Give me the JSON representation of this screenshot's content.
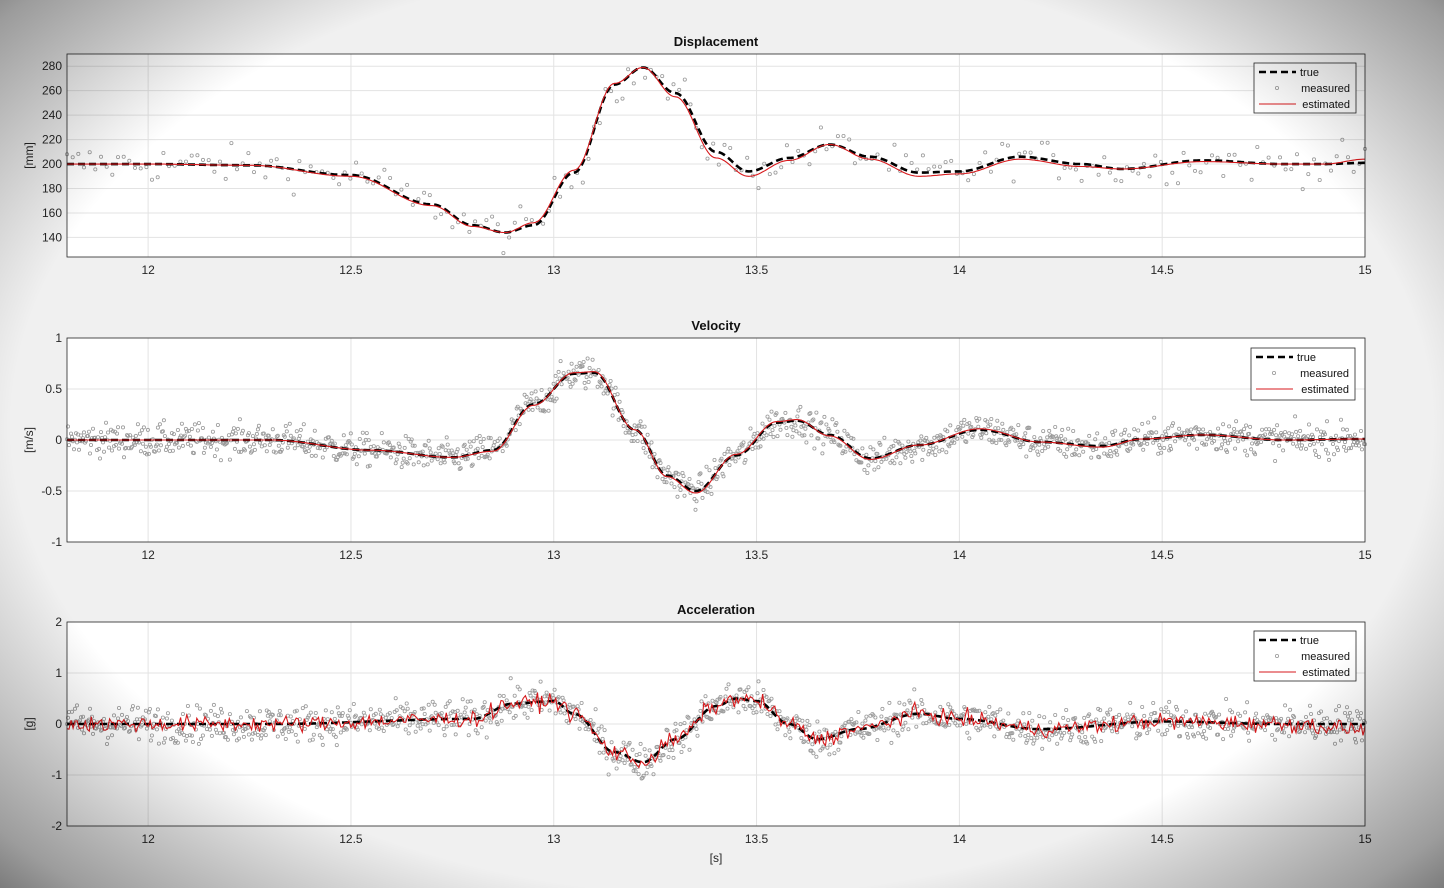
{
  "figure": {
    "xlabel": "[s]"
  },
  "chart_data": [
    {
      "type": "line",
      "title": "Displacement",
      "xlabel": "",
      "ylabel": "[mm]",
      "xlim": [
        11.8,
        15
      ],
      "ylim": [
        124,
        290
      ],
      "xticks": [
        12,
        12.5,
        13,
        13.5,
        14,
        14.5,
        15
      ],
      "xtick_labels": [
        "12",
        "12.5",
        "13",
        "13.5",
        "14",
        "14.5",
        "15"
      ],
      "yticks": [
        140,
        160,
        180,
        200,
        220,
        240,
        260,
        280
      ],
      "ytick_labels": [
        "140",
        "160",
        "180",
        "200",
        "220",
        "240",
        "260",
        "280"
      ],
      "grid": true,
      "legend_position": "top-right",
      "legend": [
        "true",
        "measured",
        "estimated"
      ],
      "x": [
        11.8,
        12.0,
        12.25,
        12.5,
        12.7,
        12.8,
        12.88,
        12.95,
        13.05,
        13.15,
        13.22,
        13.3,
        13.4,
        13.48,
        13.58,
        13.68,
        13.78,
        13.9,
        14.0,
        14.15,
        14.3,
        14.4,
        14.6,
        14.8,
        14.9,
        15.0
      ],
      "series": [
        {
          "name": "true",
          "values": [
            200,
            200,
            199,
            191,
            167,
            150,
            144,
            150,
            193,
            265,
            279,
            258,
            210,
            194,
            205,
            216,
            206,
            193,
            194,
            206,
            200,
            196,
            203,
            200,
            200,
            201
          ]
        },
        {
          "name": "estimated",
          "values": [
            200,
            200,
            199,
            190,
            166,
            149,
            144,
            152,
            195,
            266,
            279,
            255,
            205,
            190,
            203,
            216,
            204,
            190,
            192,
            204,
            198,
            196,
            202,
            200,
            200,
            204
          ]
        }
      ],
      "measured": {
        "name": "measured",
        "noise": 8,
        "count": 230
      }
    },
    {
      "type": "line",
      "title": "Velocity",
      "xlabel": "",
      "ylabel": "[m/s]",
      "xlim": [
        11.8,
        15
      ],
      "ylim": [
        -1,
        1
      ],
      "xticks": [
        12,
        12.5,
        13,
        13.5,
        14,
        14.5,
        15
      ],
      "xtick_labels": [
        "12",
        "12.5",
        "13",
        "13.5",
        "14",
        "14.5",
        "15"
      ],
      "yticks": [
        -1,
        -0.5,
        0,
        0.5,
        1
      ],
      "ytick_labels": [
        "-1",
        "-0.5",
        "0",
        "0.5",
        "1"
      ],
      "grid": true,
      "legend_position": "top-right",
      "legend": [
        "true",
        "measured",
        "estimated"
      ],
      "x": [
        11.8,
        12.0,
        12.3,
        12.55,
        12.75,
        12.85,
        12.95,
        13.05,
        13.1,
        13.2,
        13.28,
        13.35,
        13.45,
        13.55,
        13.6,
        13.68,
        13.78,
        13.9,
        14.05,
        14.2,
        14.35,
        14.45,
        14.6,
        14.8,
        15.0
      ],
      "series": [
        {
          "name": "true",
          "values": [
            0,
            0,
            0.0,
            -0.1,
            -0.17,
            -0.1,
            0.35,
            0.65,
            0.66,
            0.1,
            -0.35,
            -0.5,
            -0.15,
            0.17,
            0.19,
            0.05,
            -0.18,
            -0.05,
            0.1,
            -0.02,
            -0.06,
            0.01,
            0.05,
            0.0,
            0.01
          ]
        },
        {
          "name": "estimated",
          "values": [
            0,
            0,
            0.0,
            -0.1,
            -0.17,
            -0.11,
            0.34,
            0.66,
            0.67,
            0.1,
            -0.36,
            -0.52,
            -0.14,
            0.18,
            0.2,
            0.04,
            -0.19,
            -0.05,
            0.11,
            -0.02,
            -0.07,
            0.01,
            0.05,
            0.0,
            0.01
          ]
        }
      ],
      "measured": {
        "name": "measured",
        "noise": 0.08,
        "count": 1300
      }
    },
    {
      "type": "line",
      "title": "Acceleration",
      "xlabel": "[s]",
      "ylabel": "[g]",
      "xlim": [
        11.8,
        15
      ],
      "ylim": [
        -2,
        2
      ],
      "xticks": [
        12,
        12.5,
        13,
        13.5,
        14,
        14.5,
        15
      ],
      "xtick_labels": [
        "12",
        "12.5",
        "13",
        "13.5",
        "14",
        "14.5",
        "15"
      ],
      "yticks": [
        -2,
        -1,
        0,
        1,
        2
      ],
      "ytick_labels": [
        "-2",
        "-1",
        "0",
        "1",
        "2"
      ],
      "grid": true,
      "legend_position": "top-right",
      "legend": [
        "true",
        "measured",
        "estimated"
      ],
      "x": [
        11.8,
        12.3,
        12.8,
        12.9,
        13.0,
        13.05,
        13.15,
        13.22,
        13.3,
        13.4,
        13.45,
        13.5,
        13.58,
        13.65,
        13.75,
        13.9,
        14.0,
        14.2,
        14.5,
        14.8,
        15.0
      ],
      "series": [
        {
          "name": "true",
          "values": [
            0,
            0,
            0.1,
            0.4,
            0.45,
            0.2,
            -0.55,
            -0.75,
            -0.3,
            0.35,
            0.5,
            0.45,
            0.0,
            -0.3,
            -0.1,
            0.2,
            0.1,
            -0.1,
            0.05,
            0.0,
            0.0
          ]
        },
        {
          "name": "estimated",
          "values": [
            0,
            0,
            0.1,
            0.4,
            0.45,
            0.2,
            -0.55,
            -0.75,
            -0.3,
            0.35,
            0.5,
            0.45,
            0.0,
            -0.3,
            -0.1,
            0.2,
            0.1,
            -0.1,
            0.05,
            0.0,
            -0.1
          ],
          "noise": 0.08
        }
      ],
      "measured": {
        "name": "measured",
        "noise": 0.18,
        "count": 1300
      }
    }
  ]
}
